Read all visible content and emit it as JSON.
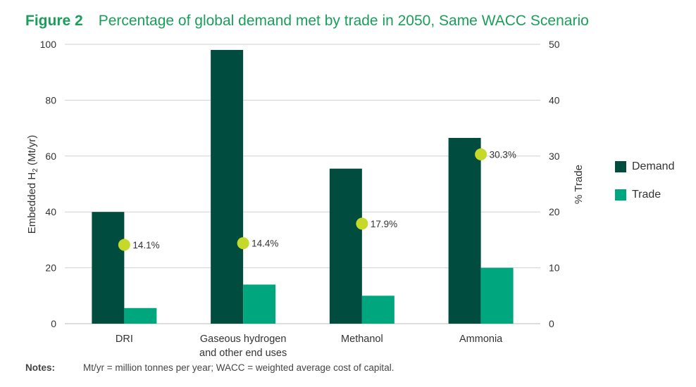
{
  "header": {
    "figure_label": "Figure 2",
    "title": "Percentage of global demand met by trade in 2050, Same WACC Scenario"
  },
  "notes": {
    "label": "Notes:",
    "text": "Mt/yr = million tonnes per year; WACC = weighted average cost of capital."
  },
  "colors": {
    "demand": "#004d40",
    "trade": "#00a67e",
    "marker": "#c5d92a",
    "grid": "#d0d0d0",
    "title": "#1a9e5a"
  },
  "chart_data": {
    "type": "bar",
    "title": "Percentage of global demand met by trade in 2050, Same WACC Scenario",
    "categories": [
      [
        "DRI"
      ],
      [
        "Gaseous hydrogen",
        "and other end uses"
      ],
      [
        "Methanol"
      ],
      [
        "Ammonia"
      ]
    ],
    "series": [
      {
        "name": "Demand",
        "axis": "left",
        "values": [
          40,
          98,
          55.5,
          66.5
        ]
      },
      {
        "name": "Trade",
        "axis": "left",
        "values": [
          5.6,
          14,
          10,
          20
        ]
      }
    ],
    "markers": {
      "name": "% Trade",
      "axis": "right",
      "values": [
        14.1,
        14.4,
        17.9,
        30.3
      ],
      "labels": [
        "14.1%",
        "14.4%",
        "17.9%",
        "30.3%"
      ]
    },
    "ylabel_main": "Embedded H",
    "ylabel_sub": "2",
    "ylabel_unit": " (Mt/yr)",
    "y2label": "% Trade",
    "ylim": [
      0,
      100
    ],
    "y2lim": [
      0,
      50
    ],
    "yticks": [
      0,
      20,
      40,
      60,
      80,
      100
    ],
    "y2ticks": [
      0,
      10,
      20,
      30,
      40,
      50
    ],
    "legend": [
      "Demand",
      "Trade"
    ],
    "legend_position": "right",
    "grid": true
  }
}
